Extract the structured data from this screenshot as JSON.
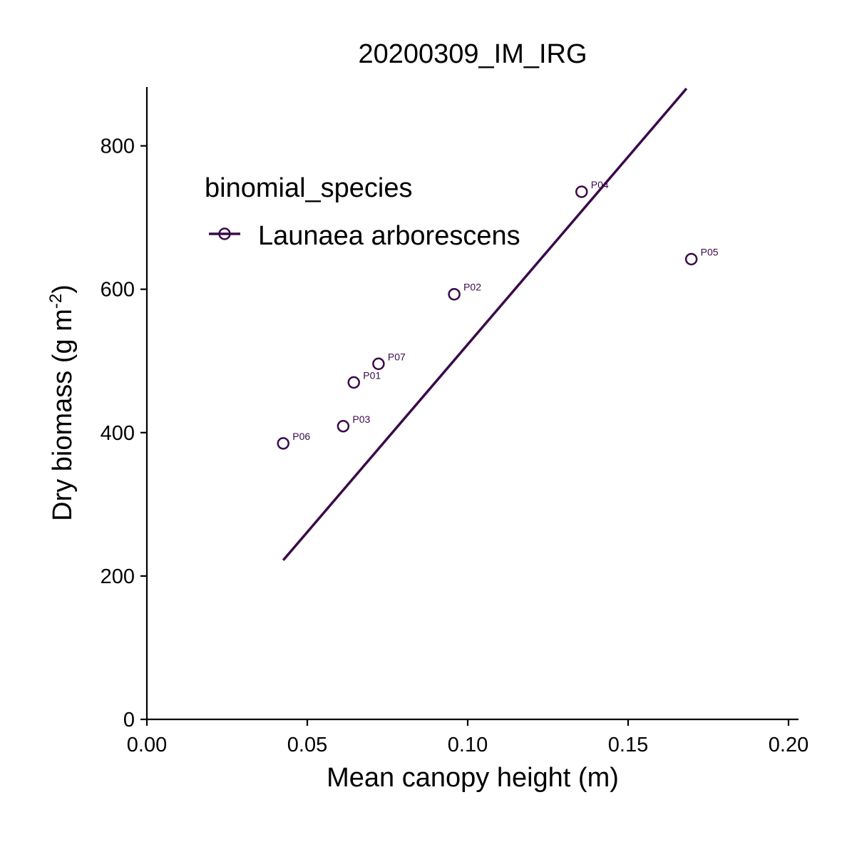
{
  "chart_data": {
    "type": "scatter",
    "title": "20200309_IM_IRG",
    "xlabel": "Mean canopy height (m)",
    "ylabel_main": "Dry biomass (g m",
    "ylabel_sup": "-2",
    "ylabel_end": ")",
    "xlim": [
      0.0,
      0.203
    ],
    "ylim": [
      0,
      880
    ],
    "x_ticks": [
      0.0,
      0.05,
      0.1,
      0.15,
      0.2
    ],
    "x_tick_labels": [
      "0.00",
      "0.05",
      "0.10",
      "0.15",
      "0.20"
    ],
    "y_ticks": [
      0,
      200,
      400,
      600,
      800
    ],
    "y_tick_labels": [
      "0",
      "200",
      "400",
      "600",
      "800"
    ],
    "grid": false,
    "legend": {
      "title": "binomial_species",
      "placement": "top-left",
      "entries": [
        "Launaea arborescens"
      ]
    },
    "series": [
      {
        "name": "Launaea arborescens",
        "color": "#3b0a4a",
        "marker": "open-circle",
        "points": [
          {
            "x": 0.0645,
            "y": 470,
            "label": "P01"
          },
          {
            "x": 0.0958,
            "y": 593,
            "label": "P02"
          },
          {
            "x": 0.0612,
            "y": 409,
            "label": "P03"
          },
          {
            "x": 0.1355,
            "y": 736,
            "label": "P04"
          },
          {
            "x": 0.1697,
            "y": 642,
            "label": "P05"
          },
          {
            "x": 0.0425,
            "y": 385,
            "label": "P06"
          },
          {
            "x": 0.0722,
            "y": 496,
            "label": "P07"
          }
        ],
        "fit_line": {
          "x": [
            0.0425,
            0.1682
          ],
          "y": [
            222,
            880
          ]
        }
      }
    ]
  }
}
